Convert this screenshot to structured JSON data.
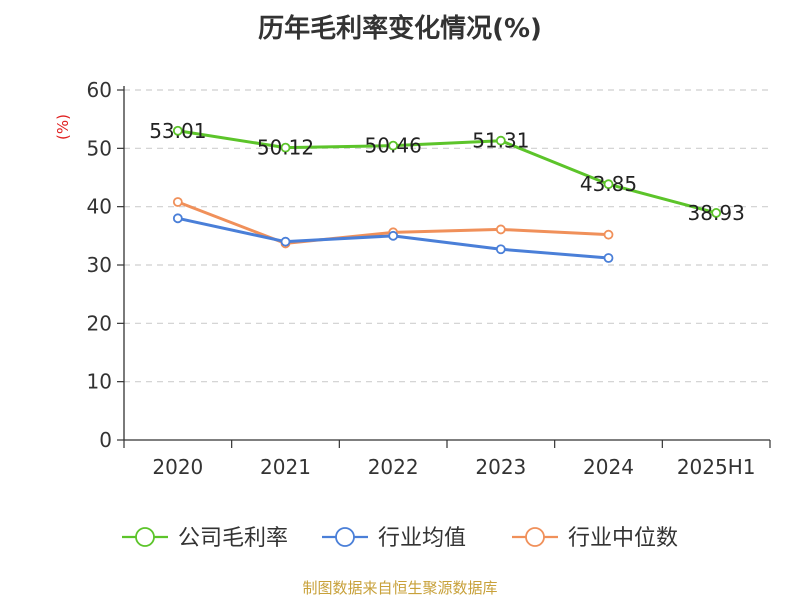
{
  "chart_data": {
    "type": "line",
    "title": "历年毛利率变化情况(%)",
    "ylabel": "(%)",
    "xlabel": "",
    "categories": [
      "2020",
      "2021",
      "2022",
      "2023",
      "2024",
      "2025H1"
    ],
    "ylim": [
      0,
      60
    ],
    "yticks": [
      0,
      10,
      20,
      30,
      40,
      50,
      60
    ],
    "grid": true,
    "legend_position": "bottom",
    "series": [
      {
        "name": "公司毛利率",
        "color": "#5cc42a",
        "values": [
          53.01,
          50.12,
          50.46,
          51.31,
          43.85,
          38.93
        ],
        "labels": [
          "53.01",
          "50.12",
          "50.46",
          "51.31",
          "43.85",
          "38.93"
        ]
      },
      {
        "name": "行业均值",
        "color": "#4a7fd8",
        "values": [
          38,
          34,
          35,
          32.7,
          31.2,
          null
        ]
      },
      {
        "name": "行业中位数",
        "color": "#f0905a",
        "values": [
          40.8,
          33.7,
          35.6,
          36.1,
          35.2,
          null
        ]
      }
    ]
  },
  "source": "制图数据来自恒生聚源数据库"
}
